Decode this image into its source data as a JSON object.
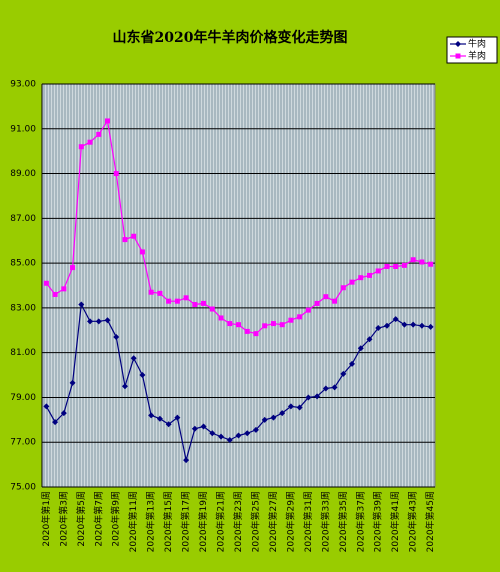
{
  "chart_data": {
    "type": "line",
    "title": "山东省2020年牛羊肉价格变化走势图",
    "categories": [
      "2020年第1周",
      null,
      "2020年第3周",
      null,
      "2020年第5周",
      null,
      "2020年第7周",
      null,
      "2020年第9周",
      null,
      "2020年第11周",
      null,
      "2020年第13周",
      null,
      "2020年第15周",
      null,
      "2020年第17周",
      null,
      "2020年第19周",
      null,
      "2020年第21周",
      null,
      "2020年第23周",
      null,
      "2020年第25周",
      null,
      "2020年第27周",
      null,
      "2020年第29周",
      null,
      "2020年第31周",
      null,
      "2020年第33周",
      null,
      "2020年第35周",
      null,
      "2020年第37周",
      null,
      "2020年第39周",
      null,
      "2020年第41周",
      null,
      "2020年第43周",
      null,
      "2020年第45周"
    ],
    "series": [
      {
        "name": "牛肉",
        "color": "#000080",
        "marker": "diamond",
        "values": [
          78.6,
          77.9,
          78.3,
          79.65,
          83.15,
          82.4,
          82.4,
          82.45,
          81.7,
          79.5,
          80.75,
          80.0,
          78.2,
          78.05,
          77.8,
          78.1,
          76.2,
          77.6,
          77.7,
          77.4,
          77.25,
          77.1,
          77.3,
          77.4,
          77.55,
          78.0,
          78.1,
          78.3,
          78.6,
          78.55,
          79.0,
          79.05,
          79.4,
          79.45,
          80.05,
          80.5,
          81.2,
          81.6,
          82.1,
          82.2,
          82.5,
          82.25,
          82.25,
          82.2,
          82.15
        ]
      },
      {
        "name": "羊肉",
        "color": "#ff00ff",
        "marker": "square",
        "values": [
          84.1,
          83.6,
          83.85,
          84.8,
          90.2,
          90.4,
          90.75,
          91.35,
          89.0,
          86.05,
          86.2,
          85.5,
          83.7,
          83.65,
          83.3,
          83.3,
          83.45,
          83.15,
          83.2,
          82.95,
          82.55,
          82.3,
          82.25,
          81.95,
          81.85,
          82.2,
          82.3,
          82.25,
          82.45,
          82.6,
          82.9,
          83.2,
          83.5,
          83.3,
          83.9,
          84.15,
          84.35,
          84.45,
          84.65,
          84.85,
          84.85,
          84.9,
          85.15,
          85.05,
          84.95
        ]
      }
    ],
    "ylim": [
      75,
      93
    ],
    "yticks": [
      {
        "value": 75,
        "label": "75.00"
      },
      {
        "value": 77,
        "label": "77.00"
      },
      {
        "value": 79,
        "label": "79.00"
      },
      {
        "value": 81,
        "label": "81.00"
      },
      {
        "value": 83,
        "label": "83.00"
      },
      {
        "value": 85,
        "label": "85.00"
      },
      {
        "value": 87,
        "label": "87.00"
      },
      {
        "value": 89,
        "label": "89.00"
      },
      {
        "value": 91,
        "label": "91.00"
      },
      {
        "value": 93,
        "label": "93.00"
      }
    ],
    "grid": true,
    "legend": "top-right"
  }
}
